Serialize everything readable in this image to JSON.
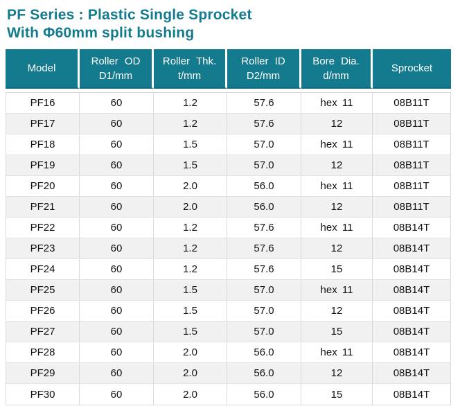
{
  "page": {
    "title_line1": "PF Series : Plastic Single Sprocket",
    "title_line2": "With Φ60mm split bushing"
  },
  "colors": {
    "accent_teal": "#147a8e",
    "header_bottom_edge": "#0e6879",
    "row_alt": "#f1f1f1",
    "grid_line": "#d9d9d9"
  },
  "table": {
    "headers": [
      {
        "line1": "Model",
        "line2": ""
      },
      {
        "line1": "Roller OD",
        "line2": "D1/mm"
      },
      {
        "line1": "Roller Thk.",
        "line2": "t/mm"
      },
      {
        "line1": "Roller ID",
        "line2": "D2/mm"
      },
      {
        "line1": "Bore Dia.",
        "line2": "d/mm"
      },
      {
        "line1": "Sprocket",
        "line2": ""
      }
    ],
    "rows": [
      [
        "PF16",
        "60",
        "1.2",
        "57.6",
        "hex 11",
        "08B11T"
      ],
      [
        "PF17",
        "60",
        "1.2",
        "57.6",
        "12",
        "08B11T"
      ],
      [
        "PF18",
        "60",
        "1.5",
        "57.0",
        "hex 11",
        "08B11T"
      ],
      [
        "PF19",
        "60",
        "1.5",
        "57.0",
        "12",
        "08B11T"
      ],
      [
        "PF20",
        "60",
        "2.0",
        "56.0",
        "hex 11",
        "08B11T"
      ],
      [
        "PF21",
        "60",
        "2.0",
        "56.0",
        "12",
        "08B11T"
      ],
      [
        "PF22",
        "60",
        "1.2",
        "57.6",
        "hex 11",
        "08B14T"
      ],
      [
        "PF23",
        "60",
        "1.2",
        "57.6",
        "12",
        "08B14T"
      ],
      [
        "PF24",
        "60",
        "1.2",
        "57.6",
        "15",
        "08B14T"
      ],
      [
        "PF25",
        "60",
        "1.5",
        "57.0",
        "hex 11",
        "08B14T"
      ],
      [
        "PF26",
        "60",
        "1.5",
        "57.0",
        "12",
        "08B14T"
      ],
      [
        "PF27",
        "60",
        "1.5",
        "57.0",
        "15",
        "08B14T"
      ],
      [
        "PF28",
        "60",
        "2.0",
        "56.0",
        "hex 11",
        "08B14T"
      ],
      [
        "PF29",
        "60",
        "2.0",
        "56.0",
        "12",
        "08B14T"
      ],
      [
        "PF30",
        "60",
        "2.0",
        "56.0",
        "15",
        "08B14T"
      ]
    ]
  }
}
